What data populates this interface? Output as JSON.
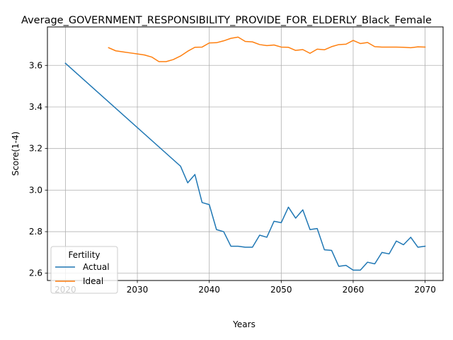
{
  "chart_data": {
    "type": "line",
    "title": "Average_GOVERNMENT_RESPONSIBILITY_PROVIDE_FOR_ELDERLY_Black_Female",
    "xlabel": "Years",
    "ylabel": "Score(1-4)",
    "xlim": [
      2017.5,
      2072.5
    ],
    "ylim": [
      2.565,
      3.785
    ],
    "xticks": [
      2020,
      2030,
      2040,
      2050,
      2060,
      2070
    ],
    "yticks": [
      2.6,
      2.8,
      3.0,
      3.2,
      3.4,
      3.6
    ],
    "grid": true,
    "legend": {
      "title": "Fertility",
      "placement": "lower-left"
    },
    "series": [
      {
        "name": "Actual",
        "color": "#1f77b4",
        "x": [
          2020,
          2036,
          2037,
          2038,
          2039,
          2040,
          2041,
          2042,
          2043,
          2044,
          2045,
          2046,
          2047,
          2048,
          2049,
          2050,
          2051,
          2052,
          2053,
          2054,
          2055,
          2056,
          2057,
          2058,
          2059,
          2060,
          2061,
          2062,
          2063,
          2064,
          2065,
          2066,
          2067,
          2068,
          2069,
          2070
        ],
        "y": [
          3.61,
          3.115,
          3.035,
          3.075,
          2.94,
          2.93,
          2.81,
          2.8,
          2.73,
          2.73,
          2.725,
          2.725,
          2.783,
          2.773,
          2.85,
          2.843,
          2.918,
          2.865,
          2.905,
          2.81,
          2.815,
          2.713,
          2.71,
          2.633,
          2.638,
          2.615,
          2.615,
          2.653,
          2.645,
          2.7,
          2.693,
          2.755,
          2.737,
          2.773,
          2.725,
          2.73
        ]
      },
      {
        "name": "Ideal",
        "color": "#ff7f0e",
        "x": [
          2026,
          2027,
          2028,
          2029,
          2030,
          2031,
          2032,
          2033,
          2034,
          2035,
          2036,
          2037,
          2038,
          2039,
          2040,
          2041,
          2042,
          2043,
          2044,
          2045,
          2046,
          2047,
          2048,
          2049,
          2050,
          2051,
          2052,
          2053,
          2054,
          2055,
          2056,
          2057,
          2058,
          2059,
          2060,
          2061,
          2062,
          2063,
          2064,
          2065,
          2066,
          2067,
          2068,
          2069,
          2070
        ],
        "y": [
          3.685,
          3.67,
          3.665,
          3.66,
          3.655,
          3.65,
          3.64,
          3.618,
          3.618,
          3.628,
          3.645,
          3.668,
          3.687,
          3.688,
          3.708,
          3.709,
          3.718,
          3.73,
          3.736,
          3.715,
          3.713,
          3.7,
          3.695,
          3.698,
          3.688,
          3.687,
          3.672,
          3.676,
          3.658,
          3.678,
          3.675,
          3.69,
          3.7,
          3.702,
          3.72,
          3.705,
          3.71,
          3.69,
          3.688,
          3.688,
          3.688,
          3.687,
          3.685,
          3.689,
          3.688
        ]
      }
    ]
  }
}
